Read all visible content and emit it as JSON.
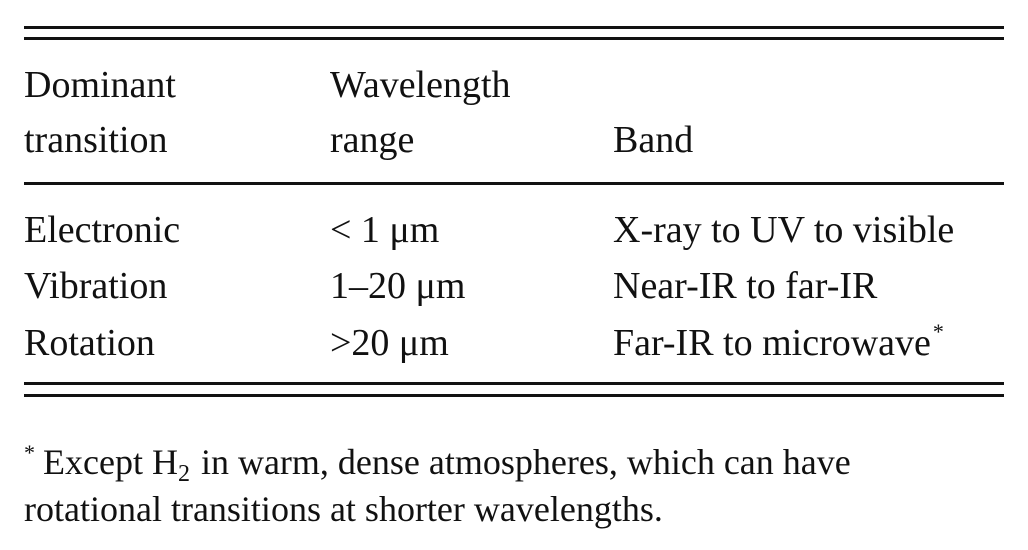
{
  "table": {
    "headers": {
      "dominant_line1": "Dominant",
      "dominant_line2": "transition",
      "wavelength_line1": "Wavelength",
      "wavelength_line2": "range",
      "band": "Band"
    },
    "rows": [
      {
        "transition": "Electronic",
        "range": "< 1 μm",
        "band": "X-ray to UV to visible",
        "band_mark": ""
      },
      {
        "transition": "Vibration",
        "range": "1–20 μm",
        "band": "Near-IR to far-IR",
        "band_mark": ""
      },
      {
        "transition": "Rotation",
        "range": ">20 μm",
        "band": "Far-IR to microwave",
        "band_mark": "*"
      }
    ]
  },
  "footnote": {
    "mark": "*",
    "text_before": "Except H",
    "subscript": "2",
    "text_after": " in warm, dense atmospheres, which can have",
    "line2": "rotational transitions at shorter wavelengths."
  }
}
